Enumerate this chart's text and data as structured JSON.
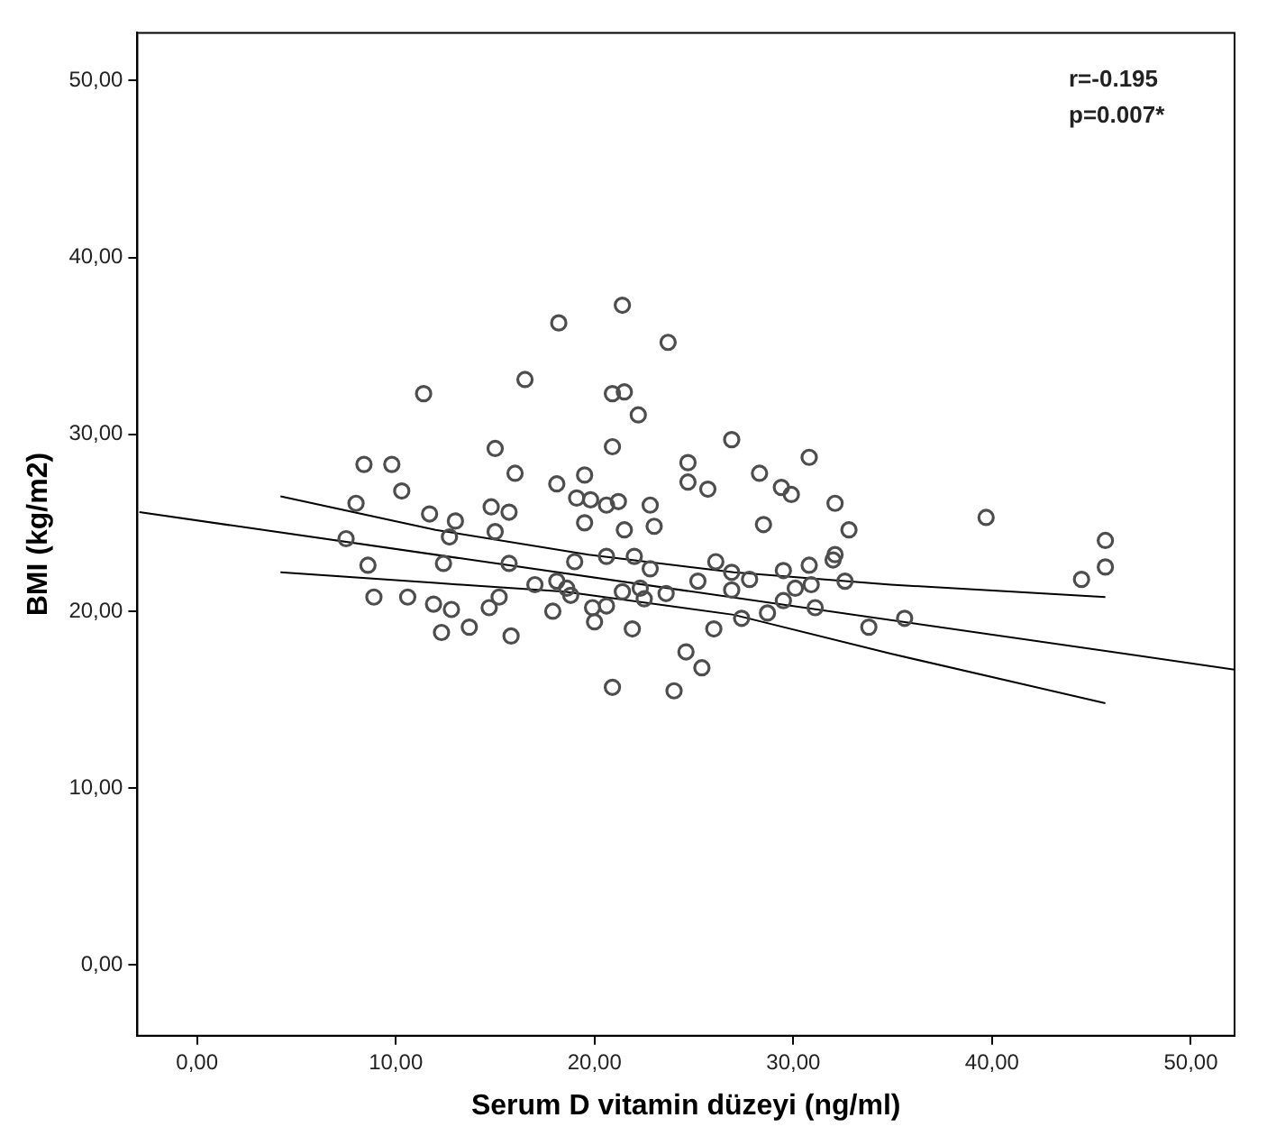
{
  "chart_data": {
    "type": "scatter",
    "xlabel": "Serum D vitamin düzeyi (ng/ml)",
    "ylabel": "BMI (kg/m2)",
    "annotations": [
      "r=-0.195",
      "p=0.007*"
    ],
    "xlim": [
      -3,
      52.2
    ],
    "ylim": [
      -4,
      52.7
    ],
    "xticks": [
      {
        "value": 0,
        "label": "0,00"
      },
      {
        "value": 10,
        "label": "10,00"
      },
      {
        "value": 20,
        "label": "20,00"
      },
      {
        "value": 30,
        "label": "30,00"
      },
      {
        "value": 40,
        "label": "40,00"
      },
      {
        "value": 50,
        "label": "50,00"
      }
    ],
    "yticks": [
      {
        "value": 0,
        "label": "0,00"
      },
      {
        "value": 10,
        "label": "10,00"
      },
      {
        "value": 20,
        "label": "20,00"
      },
      {
        "value": 30,
        "label": "30,00"
      },
      {
        "value": 40,
        "label": "40,00"
      },
      {
        "value": 50,
        "label": "50,00"
      }
    ],
    "grid": false,
    "marker": "circle",
    "series": [
      {
        "color": "#4d4d4d",
        "x": [
          8.4,
          9.8,
          10.3,
          8.0,
          7.5,
          8.6,
          8.9,
          10.6,
          12.3,
          13.7,
          11.9,
          12.8,
          11.4,
          16.5,
          18.2,
          15.0,
          16.0,
          18.1,
          19.1,
          19.5,
          11.7,
          13.0,
          14.8,
          15.7,
          15.0,
          12.7,
          12.4,
          15.7,
          19.0,
          17.0,
          18.1,
          18.6,
          18.8,
          15.2,
          14.7,
          17.9,
          15.8,
          19.5,
          21.4,
          23.7,
          20.9,
          21.5,
          22.2,
          20.9,
          26.9,
          24.7,
          30.8,
          24.7,
          25.7,
          28.3,
          29.4,
          29.9,
          19.8,
          20.6,
          21.2,
          22.8,
          21.5,
          23.0,
          28.5,
          32.1,
          32.8,
          20.6,
          22.0,
          22.8,
          26.1,
          26.9,
          27.8,
          29.5,
          30.8,
          32.0,
          32.1,
          30.9,
          32.6,
          25.2,
          30.1,
          21.4,
          22.3,
          22.5,
          23.6,
          26.9,
          19.9,
          20.6,
          29.5,
          31.1,
          20.0,
          21.9,
          26.0,
          27.4,
          28.7,
          33.8,
          24.6,
          25.4,
          20.9,
          24.0,
          39.7,
          45.7,
          45.7,
          44.5,
          35.6
        ],
        "values": [
          28.3,
          28.3,
          26.8,
          26.1,
          24.1,
          22.6,
          20.8,
          20.8,
          18.8,
          19.1,
          20.4,
          20.1,
          32.3,
          33.1,
          36.3,
          29.2,
          27.8,
          27.2,
          26.4,
          27.7,
          25.5,
          25.1,
          25.9,
          25.6,
          24.5,
          24.2,
          22.7,
          22.7,
          22.8,
          21.5,
          21.7,
          21.3,
          20.9,
          20.8,
          20.2,
          20.0,
          18.6,
          25.0,
          37.3,
          35.2,
          32.3,
          32.4,
          31.1,
          29.3,
          29.7,
          28.4,
          28.7,
          27.3,
          26.9,
          27.8,
          27.0,
          26.6,
          26.3,
          26.0,
          26.2,
          26.0,
          24.6,
          24.8,
          24.9,
          26.1,
          24.6,
          23.1,
          23.1,
          22.4,
          22.8,
          22.2,
          21.8,
          22.3,
          22.6,
          22.9,
          23.2,
          21.5,
          21.7,
          21.7,
          21.3,
          21.1,
          21.3,
          20.7,
          21.0,
          21.2,
          20.2,
          20.3,
          20.6,
          20.2,
          19.4,
          19.0,
          19.0,
          19.6,
          19.9,
          19.1,
          17.7,
          16.8,
          15.7,
          15.5,
          25.3,
          24.0,
          22.5,
          21.8,
          19.6
        ]
      },
      {
        "type": "line",
        "color": "#000000",
        "marker": "none",
        "x": [
          -2.9,
          52.2
        ],
        "values": [
          25.6,
          16.7
        ]
      },
      {
        "type": "line",
        "color": "#000000",
        "marker": "none",
        "x": [
          4.2,
          12,
          19.7,
          27,
          34.9,
          45.7
        ],
        "values": [
          26.5,
          24.6,
          23.2,
          22.2,
          21.5,
          20.8
        ]
      },
      {
        "type": "line",
        "color": "#000000",
        "marker": "none",
        "x": [
          4.2,
          12,
          18.5,
          27,
          34.9,
          45.7
        ],
        "values": [
          22.2,
          21.6,
          21.1,
          19.8,
          17.6,
          14.8
        ]
      }
    ]
  }
}
